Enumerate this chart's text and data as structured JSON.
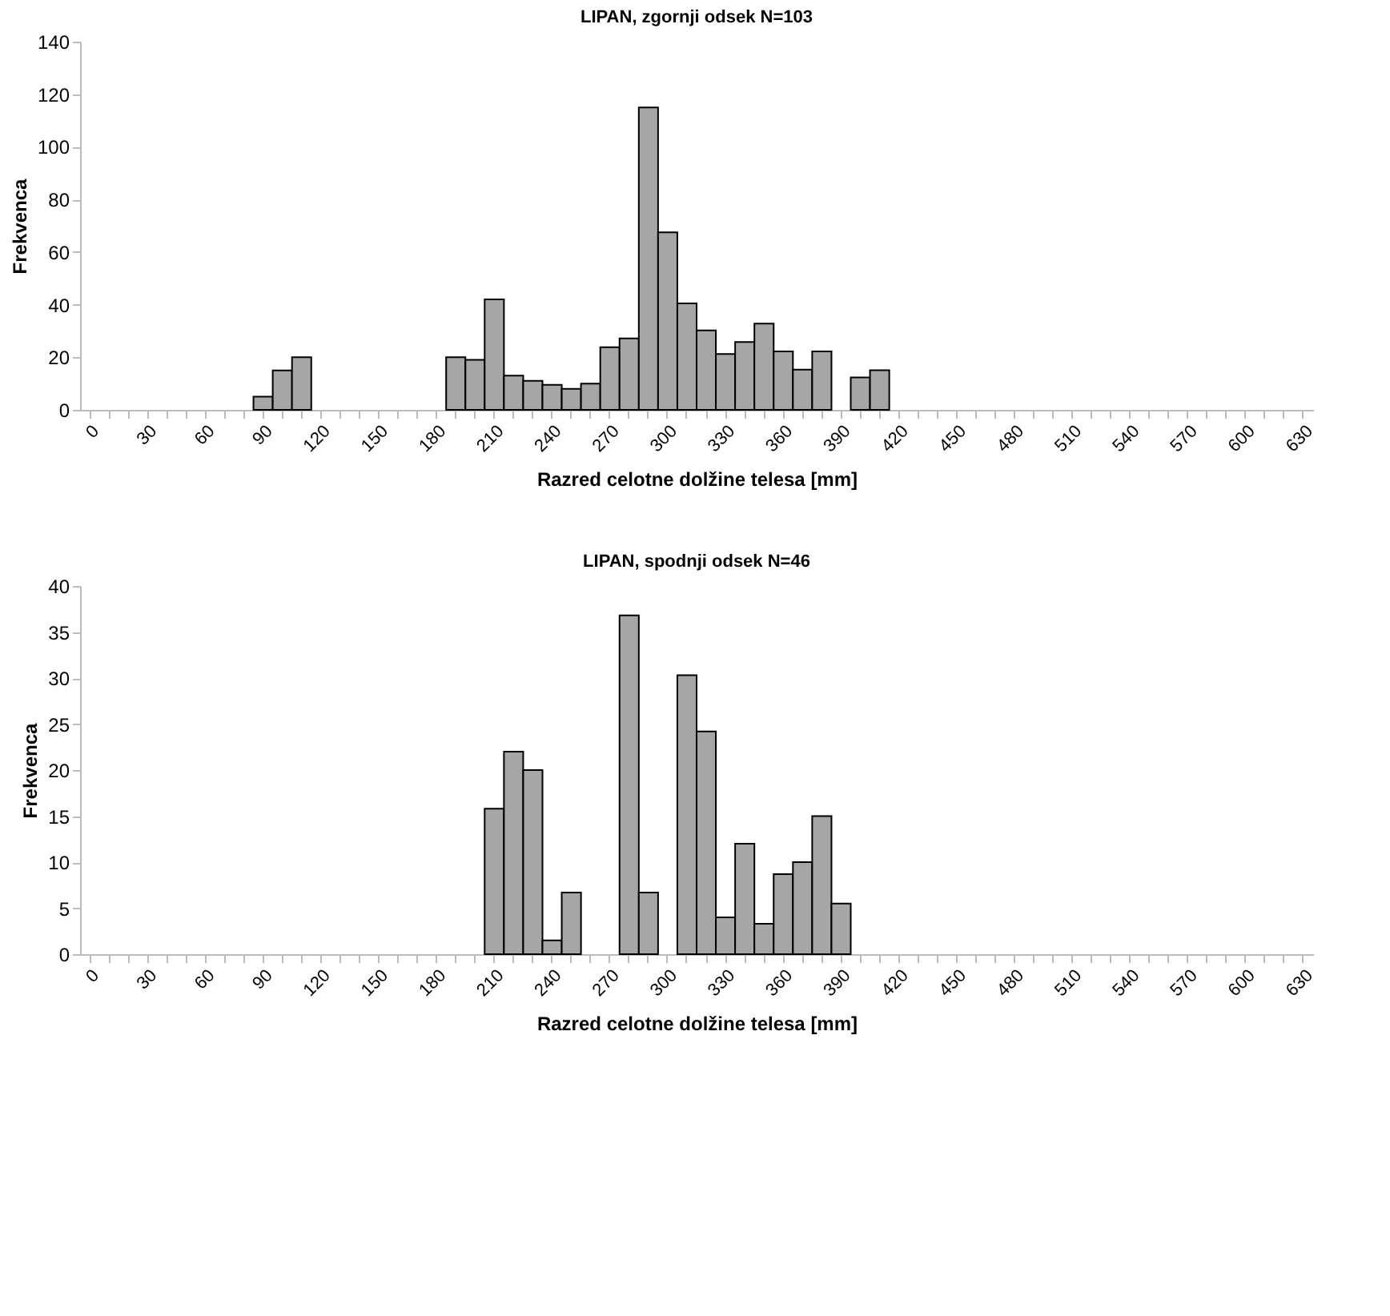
{
  "chart_data": [
    {
      "type": "bar",
      "title": "LIPAN, zgornji odsek N=103",
      "xlabel": "Razred celotne dolžine telesa [mm]",
      "ylabel": "Frekvenca",
      "categories": [
        "0",
        null,
        null,
        "30",
        null,
        null,
        "60",
        null,
        null,
        "90",
        null,
        null,
        "120",
        null,
        null,
        "150",
        null,
        null,
        "180",
        null,
        null,
        "210",
        null,
        null,
        "240",
        null,
        null,
        "270",
        null,
        null,
        "300",
        null,
        null,
        "330",
        null,
        null,
        "360",
        null,
        null,
        "390",
        null,
        null,
        "420",
        null,
        null,
        "450",
        null,
        null,
        "480",
        null,
        null,
        "510",
        null,
        null,
        "540",
        null,
        null,
        "570",
        null,
        null,
        "600",
        null,
        null,
        "630"
      ],
      "values": [
        null,
        null,
        null,
        null,
        null,
        null,
        null,
        null,
        null,
        5,
        15,
        20,
        null,
        null,
        null,
        null,
        null,
        null,
        null,
        20,
        19,
        42,
        13,
        11,
        9.5,
        8,
        10,
        23.8,
        27.2,
        115,
        67.5,
        40.5,
        30.2,
        21.2,
        25.8,
        32.8,
        22.2,
        15.3,
        22.2,
        null,
        12.3,
        15.1,
        null,
        null,
        null,
        null,
        null,
        null,
        null,
        null,
        null,
        null,
        null,
        null,
        null,
        null,
        null,
        null,
        null,
        null,
        null,
        null,
        null,
        null
      ],
      "color": "#a6a6a6",
      "ylim": [
        0,
        140
      ],
      "yticks": [
        0,
        20,
        40,
        60,
        80,
        100,
        120,
        140
      ]
    },
    {
      "type": "bar",
      "title": "LIPAN, spodnji odsek N=46",
      "xlabel": "Razred celotne dolžine telesa [mm]",
      "ylabel": "Frekvenca",
      "categories": [
        "0",
        null,
        null,
        "30",
        null,
        null,
        "60",
        null,
        null,
        "90",
        null,
        null,
        "120",
        null,
        null,
        "150",
        null,
        null,
        "180",
        null,
        null,
        "210",
        null,
        null,
        "240",
        null,
        null,
        "270",
        null,
        null,
        "300",
        null,
        null,
        "330",
        null,
        null,
        "360",
        null,
        null,
        "390",
        null,
        null,
        "420",
        null,
        null,
        "450",
        null,
        null,
        "480",
        null,
        null,
        "510",
        null,
        null,
        "540",
        null,
        null,
        "570",
        null,
        null,
        "600",
        null,
        null,
        "630"
      ],
      "values": [
        null,
        null,
        null,
        null,
        null,
        null,
        null,
        null,
        null,
        null,
        null,
        null,
        null,
        null,
        null,
        null,
        null,
        null,
        null,
        null,
        null,
        15.8,
        22,
        20,
        1.5,
        6.7,
        null,
        null,
        36.8,
        6.7,
        null,
        30.3,
        24.2,
        4,
        12,
        3.3,
        8.7,
        10,
        15,
        5.5,
        null,
        null,
        null,
        null,
        null,
        null,
        null,
        null,
        null,
        null,
        null,
        null,
        null,
        null,
        null,
        null,
        null,
        null,
        null,
        null,
        null,
        null,
        null,
        null
      ],
      "color": "#a6a6a6",
      "ylim": [
        0,
        40
      ],
      "yticks": [
        0,
        5,
        10,
        15,
        20,
        25,
        30,
        35,
        40
      ]
    }
  ]
}
